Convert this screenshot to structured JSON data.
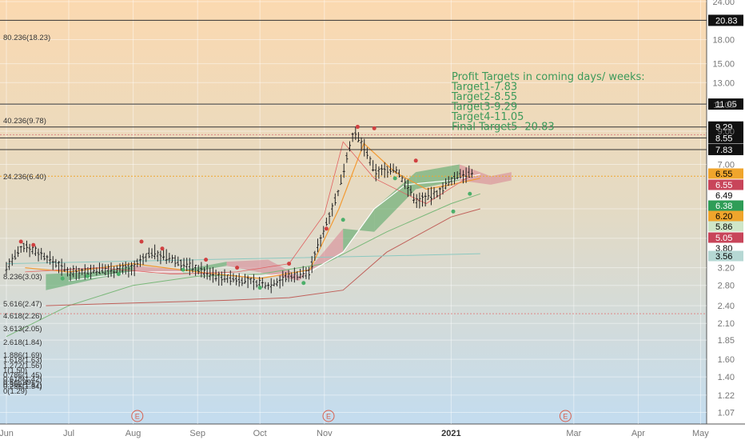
{
  "chart_data": {
    "type": "line",
    "title": "",
    "xlabel": "",
    "ylabel": "",
    "y_scale": "log",
    "ylim": [
      0.98,
      24.3
    ],
    "grid": true,
    "x_ticks": [
      "Jun",
      "Jul",
      "Aug",
      "Sep",
      "Oct",
      "Nov",
      "2021",
      "Mar",
      "Apr",
      "May"
    ],
    "y_ticks": [
      "24.00",
      "18.00",
      "15.00",
      "13.00",
      "11.00",
      "9.00",
      "7.00",
      "5.00",
      "4.00",
      "3.20",
      "2.80",
      "2.40",
      "2.10",
      "1.85",
      "1.60",
      "1.40",
      "1.22",
      "1.07"
    ],
    "earnings_marker": "E",
    "earnings_positions": [
      "Aug",
      "Nov",
      "Mar"
    ],
    "colors": {
      "up_candle": "#222222",
      "down_candle": "#222222",
      "cloud_bull": "#5aa86a",
      "cloud_bear": "#d98a96",
      "tenkan": "#f29a33",
      "kijun": "#e0a040",
      "ma_white": "#ffffff",
      "ma_green": "#7ab87a",
      "ma_red": "#c0605a",
      "ma_teal": "#8cc8c0",
      "lagging_span": "#e06060",
      "psar_green": "#4caf6a",
      "psar_red": "#d04040",
      "target_text": "#3c9a5a",
      "bg_top": "#fbd9b0",
      "bg_bottom": "#c3dcef"
    },
    "annotation_lines": [
      "Profit Targets in coming days/ weeks:",
      "Target1-7.83",
      "Target2-8.55",
      "Target3-9.29",
      "Target4-11.05",
      "Final Target5- 20.83"
    ],
    "horizontal_levels": [
      {
        "value": 20.83,
        "label": "20.83",
        "style": "solid"
      },
      {
        "value": 11.05,
        "label": "11.05",
        "style": "solid"
      },
      {
        "value": 9.29,
        "label": "9.29",
        "style": "solid"
      },
      {
        "value": 8.55,
        "label": "8.55",
        "style": "solid"
      },
      {
        "value": 7.83,
        "label": "7.83",
        "style": "solid"
      }
    ],
    "price_badges": [
      {
        "label": "6.55",
        "value": 6.55,
        "bg": "#f0a52c",
        "fg": "#000000"
      },
      {
        "label": "6.55",
        "value": 6.05,
        "bg": "#c8455a",
        "fg": "#ffffff"
      },
      {
        "label": "6.49",
        "value": 5.78,
        "bg": "#ffffff",
        "fg": "#000000"
      },
      {
        "label": "6.38",
        "value": 5.52,
        "bg": "#2f9d57",
        "fg": "#ffffff"
      },
      {
        "label": "6.20",
        "value": 5.29,
        "bg": "#f0a52c",
        "fg": "#000000"
      },
      {
        "label": "5.86",
        "value": 5.08,
        "bg": "#cfe6c8",
        "fg": "#000000"
      },
      {
        "label": "5.05",
        "value": 4.84,
        "bg": "#c8455a",
        "fg": "#ffffff"
      },
      {
        "label": "3.80",
        "value": 3.8,
        "bg": "#ffffff",
        "fg": "#000000"
      },
      {
        "label": "3.56",
        "value": 3.56,
        "bg": "#b6d8d4",
        "fg": "#000000"
      }
    ],
    "fib_levels": [
      {
        "label": "80.236(18.23)",
        "value": 18.23
      },
      {
        "label": "40.236(9.78)",
        "value": 9.78
      },
      {
        "label": "24.236(6.40)",
        "value": 6.4
      },
      {
        "label": "8.236(3.03)",
        "value": 3.03
      },
      {
        "label": "5.616(2.47)",
        "value": 2.47
      },
      {
        "label": "4.618(2.26)",
        "value": 2.26
      },
      {
        "label": "3.613(2.05)",
        "value": 2.05
      },
      {
        "label": "2.618(1.84)",
        "value": 1.84
      },
      {
        "label": "1.886(1.69)",
        "value": 1.69
      },
      {
        "label": "1.618(1.63)",
        "value": 1.63
      },
      {
        "label": "1.272(1.56)",
        "value": 1.56
      },
      {
        "label": "1(1.50)",
        "value": 1.5
      },
      {
        "label": "0.786(1.45)",
        "value": 1.45
      },
      {
        "label": "0.618(1.42)",
        "value": 1.42
      },
      {
        "label": "0.5(1.39)",
        "value": 1.39
      },
      {
        "label": "0.382(1.37)",
        "value": 1.37
      },
      {
        "label": "0.236(1.34)",
        "value": 1.34
      },
      {
        "label": "0(1.29)",
        "value": 1.29
      }
    ],
    "fib_lines_drawn": [
      6.4,
      2.26
    ],
    "series": [
      {
        "name": "",
        "type": "ohlc",
        "dates": [
          "2020-06-01",
          "2020-06-15",
          "2020-07-01",
          "2020-07-15",
          "2020-08-01",
          "2020-08-15",
          "2020-09-01",
          "2020-09-15",
          "2020-10-01",
          "2020-10-15",
          "2020-11-01",
          "2020-11-08",
          "2020-11-15",
          "2020-11-22",
          "2020-12-01",
          "2020-12-15",
          "2021-01-01",
          "2021-01-10"
        ],
        "close": [
          3.3,
          3.1,
          3.05,
          3.15,
          3.2,
          3.1,
          2.95,
          2.9,
          2.85,
          3.05,
          4.2,
          5.5,
          8.8,
          6.8,
          6.2,
          5.2,
          6.3,
          6.49
        ]
      }
    ]
  }
}
